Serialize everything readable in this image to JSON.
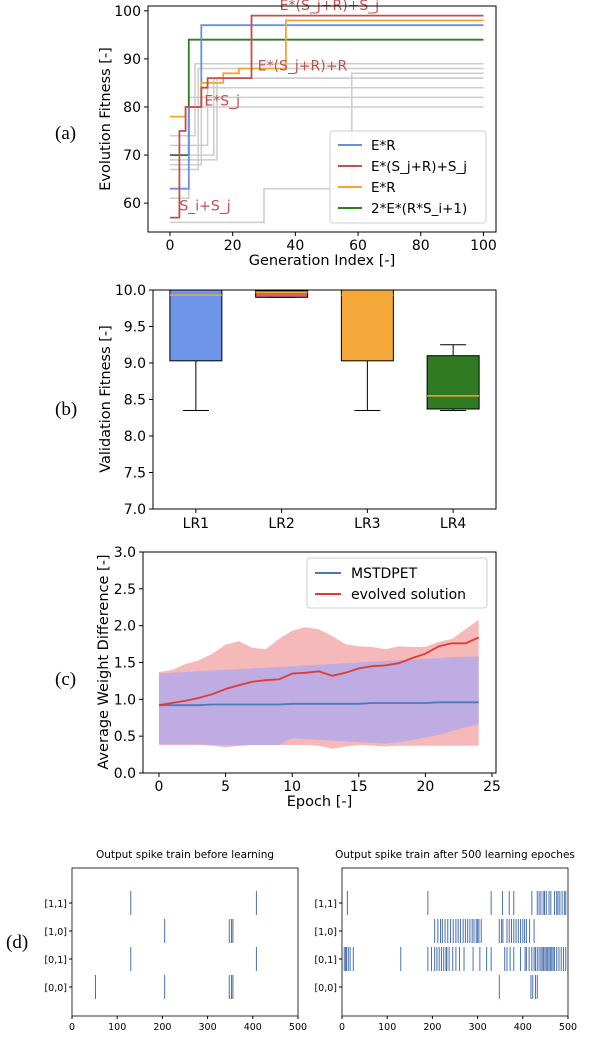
{
  "panel_labels": [
    "(a)",
    "(b)",
    "(c)",
    "(d)"
  ],
  "colors": {
    "blue": "#6a8fe0",
    "red": "#c0504d",
    "orange": "#f5a431",
    "green": "#2e7d20",
    "gray": "#cccccc",
    "box_blue": "#6e95e8",
    "box_red": "#d16464",
    "box_orange": "#f5a83a",
    "box_green": "#2f7a22",
    "line_blue": "#4d78c0",
    "line_red": "#e03b2e",
    "fill_red": "#f19b9b",
    "fill_blue": "#a7a7f5",
    "spike": "#4870b0"
  },
  "chart_data": [
    {
      "id": "a",
      "type": "line",
      "xlabel": "Generation Index [-]",
      "ylabel": "Evolution Fitness [-]",
      "xlim": [
        -7,
        104
      ],
      "ylim": [
        54,
        101
      ],
      "xticks": [
        0,
        20,
        40,
        60,
        80,
        100
      ],
      "yticks": [
        60,
        70,
        80,
        90,
        100
      ],
      "legend_position": "lower-right",
      "series": [
        {
          "name": "E*R",
          "color": "blue",
          "points": [
            [
              0,
              63
            ],
            [
              6,
              63
            ],
            [
              6,
              80
            ],
            [
              10,
              80
            ],
            [
              10,
              97
            ],
            [
              100,
              97
            ]
          ]
        },
        {
          "name": "E*(S_j+R)+S_j",
          "color": "red",
          "points": [
            [
              0,
              57
            ],
            [
              3,
              57
            ],
            [
              3,
              75
            ],
            [
              5,
              75
            ],
            [
              5,
              80
            ],
            [
              10,
              80
            ],
            [
              10,
              84
            ],
            [
              12,
              84
            ],
            [
              12,
              86
            ],
            [
              26,
              86
            ],
            [
              26,
              99
            ],
            [
              100,
              99
            ]
          ]
        },
        {
          "name": "E*R",
          "color": "orange",
          "points": [
            [
              0,
              78
            ],
            [
              5,
              78
            ],
            [
              5,
              80
            ],
            [
              10,
              80
            ],
            [
              10,
              85
            ],
            [
              17,
              85
            ],
            [
              17,
              87
            ],
            [
              22,
              87
            ],
            [
              22,
              88
            ],
            [
              37,
              88
            ],
            [
              37,
              98
            ],
            [
              100,
              98
            ]
          ]
        },
        {
          "name": "2*E*(R*S_i+1)",
          "color": "green",
          "points": [
            [
              0,
              70
            ],
            [
              6,
              70
            ],
            [
              6,
              94
            ],
            [
              100,
              94
            ]
          ]
        }
      ],
      "gray_series": [
        [
          [
            0,
            74
          ],
          [
            8,
            74
          ],
          [
            8,
            89
          ],
          [
            100,
            89
          ]
        ],
        [
          [
            0,
            72
          ],
          [
            12,
            72
          ],
          [
            12,
            84
          ],
          [
            100,
            84
          ]
        ],
        [
          [
            0,
            68
          ],
          [
            10,
            68
          ],
          [
            10,
            80
          ],
          [
            100,
            80
          ]
        ],
        [
          [
            0,
            70
          ],
          [
            14,
            70
          ],
          [
            14,
            86
          ],
          [
            100,
            86
          ]
        ],
        [
          [
            0,
            61
          ],
          [
            6,
            61
          ],
          [
            6,
            82
          ],
          [
            100,
            82
          ]
        ],
        [
          [
            0,
            69
          ],
          [
            15,
            69
          ],
          [
            15,
            86
          ],
          [
            100,
            86
          ]
        ],
        [
          [
            0,
            67
          ],
          [
            9,
            67
          ],
          [
            9,
            88
          ],
          [
            100,
            88
          ]
        ],
        [
          [
            0,
            56
          ],
          [
            30,
            56
          ],
          [
            30,
            63
          ],
          [
            58,
            63
          ],
          [
            58,
            87
          ],
          [
            100,
            87
          ]
        ]
      ],
      "annotations": [
        {
          "text": "E*(S_j+R)+S_j",
          "x": 35,
          "y": 100.2
        },
        {
          "text": "E*(S_j+R)+R",
          "x": 28,
          "y": 87.6
        },
        {
          "text": "E*S_j",
          "x": 11,
          "y": 80.3
        },
        {
          "text": "S_i+S_j",
          "x": 3,
          "y": 58.5
        }
      ]
    },
    {
      "id": "b",
      "type": "box",
      "ylabel": "Validation Fitness [-]",
      "ylim": [
        7.0,
        10.0
      ],
      "yticks": [
        7.0,
        7.5,
        8.0,
        8.5,
        9.0,
        9.5,
        10.0
      ],
      "categories": [
        "LR1",
        "LR2",
        "LR3",
        "LR4"
      ],
      "boxes": [
        {
          "category": "LR1",
          "whisker_low": 8.35,
          "q1": 9.03,
          "median": 9.93,
          "q3": 10.0,
          "whisker_high": 10.0,
          "color": "box_blue"
        },
        {
          "category": "LR2",
          "whisker_low": 9.9,
          "q1": 9.9,
          "median": 9.97,
          "q3": 9.99,
          "whisker_high": 10.0,
          "color": "box_red"
        },
        {
          "category": "LR3",
          "whisker_low": 8.35,
          "q1": 9.03,
          "median": 9.93,
          "q3": 10.0,
          "whisker_high": 10.0,
          "color": "box_orange"
        },
        {
          "category": "LR4",
          "whisker_low": 8.35,
          "q1": 8.37,
          "median": 8.55,
          "q3": 9.1,
          "whisker_high": 9.25,
          "color": "box_green"
        }
      ]
    },
    {
      "id": "c",
      "type": "line",
      "xlabel": "Epoch [-]",
      "ylabel": "Average Weight Difference [-]",
      "xlim": [
        -1.2,
        25.3
      ],
      "ylim": [
        0.0,
        3.0
      ],
      "xticks": [
        0,
        5,
        10,
        15,
        20,
        25
      ],
      "yticks": [
        0.0,
        0.5,
        1.0,
        1.5,
        2.0,
        2.5,
        3.0
      ],
      "legend_position": "top-right",
      "x": [
        0,
        1,
        2,
        3,
        4,
        5,
        6,
        7,
        8,
        9,
        10,
        11,
        12,
        13,
        14,
        15,
        16,
        17,
        18,
        19,
        20,
        21,
        22,
        23,
        24
      ],
      "series": [
        {
          "name": "MSTDPET",
          "color": "line_blue",
          "values": [
            0.92,
            0.92,
            0.92,
            0.92,
            0.93,
            0.93,
            0.93,
            0.93,
            0.93,
            0.93,
            0.94,
            0.94,
            0.94,
            0.94,
            0.94,
            0.94,
            0.95,
            0.95,
            0.95,
            0.95,
            0.95,
            0.96,
            0.96,
            0.96,
            0.96
          ],
          "upper": [
            1.35,
            1.36,
            1.37,
            1.38,
            1.39,
            1.4,
            1.41,
            1.42,
            1.43,
            1.44,
            1.45,
            1.46,
            1.47,
            1.48,
            1.49,
            1.5,
            1.51,
            1.52,
            1.53,
            1.54,
            1.55,
            1.56,
            1.57,
            1.58,
            1.58
          ],
          "lower": [
            0.39,
            0.39,
            0.39,
            0.39,
            0.38,
            0.38,
            0.37,
            0.38,
            0.38,
            0.38,
            0.47,
            0.46,
            0.45,
            0.44,
            0.43,
            0.42,
            0.41,
            0.4,
            0.42,
            0.45,
            0.48,
            0.52,
            0.57,
            0.62,
            0.66
          ]
        },
        {
          "name": "evolved solution",
          "color": "line_red",
          "values": [
            0.92,
            0.95,
            0.98,
            1.02,
            1.07,
            1.14,
            1.19,
            1.24,
            1.26,
            1.27,
            1.35,
            1.36,
            1.38,
            1.32,
            1.36,
            1.42,
            1.45,
            1.46,
            1.49,
            1.56,
            1.62,
            1.72,
            1.76,
            1.76,
            1.84
          ],
          "upper": [
            1.37,
            1.4,
            1.48,
            1.53,
            1.62,
            1.74,
            1.79,
            1.7,
            1.68,
            1.82,
            1.93,
            1.98,
            1.95,
            1.86,
            1.75,
            1.72,
            1.71,
            1.68,
            1.72,
            1.71,
            1.71,
            1.78,
            1.82,
            1.95,
            2.08
          ],
          "lower": [
            0.38,
            0.38,
            0.38,
            0.38,
            0.37,
            0.35,
            0.37,
            0.38,
            0.38,
            0.38,
            0.38,
            0.38,
            0.37,
            0.33,
            0.36,
            0.38,
            0.37,
            0.36,
            0.37,
            0.37,
            0.37,
            0.37,
            0.37,
            0.37,
            0.37
          ]
        }
      ]
    },
    {
      "id": "d1",
      "type": "scatter",
      "title": "Output spike train before learning",
      "xlim": [
        0,
        500
      ],
      "xticks": [
        0,
        100,
        200,
        300,
        400,
        500
      ],
      "rows": [
        "[1,1]",
        "[1,0]",
        "[0,1]",
        "[0,0]"
      ],
      "spikes": {
        "[1,1]": [
          130,
          408
        ],
        "[1,0]": [
          205,
          348,
          353,
          356
        ],
        "[0,1]": [
          130,
          408
        ],
        "[0,0]": [
          52,
          205,
          348,
          353,
          356
        ]
      }
    },
    {
      "id": "d2",
      "type": "scatter",
      "title": "Output spike train after 500 learning epoches",
      "xlim": [
        0,
        500
      ],
      "xticks": [
        0,
        100,
        200,
        300,
        400,
        500
      ],
      "rows": [
        "[1,1]",
        "[1,0]",
        "[0,1]",
        "[0,0]"
      ],
      "spikes": {
        "[1,1]": [
          12,
          190,
          330,
          355,
          370,
          380,
          420,
          432,
          436,
          440,
          445,
          448,
          452,
          458,
          462,
          470,
          475,
          478,
          482,
          487,
          492,
          495
        ],
        "[1,0]": [
          205,
          212,
          218,
          222,
          228,
          234,
          240,
          246,
          252,
          257,
          262,
          268,
          273,
          278,
          283,
          288,
          292,
          297,
          300,
          303,
          308,
          348,
          353,
          356,
          365,
          370,
          375,
          380,
          385,
          390,
          395,
          400,
          404,
          408,
          415,
          425
        ],
        "[0,1]": [
          5,
          8,
          10,
          14,
          18,
          25,
          130,
          190,
          198,
          205,
          210,
          215,
          220,
          225,
          230,
          232,
          237,
          245,
          252,
          260,
          270,
          290,
          305,
          320,
          330,
          360,
          365,
          372,
          380,
          395,
          405,
          408,
          414,
          420,
          425,
          428,
          432,
          436,
          440,
          443,
          446,
          449,
          452,
          455,
          458,
          461,
          464,
          467,
          470,
          475,
          480,
          485,
          490,
          495
        ],
        "[0,0]": [
          348,
          418,
          422,
          428,
          432
        ]
      }
    }
  ]
}
